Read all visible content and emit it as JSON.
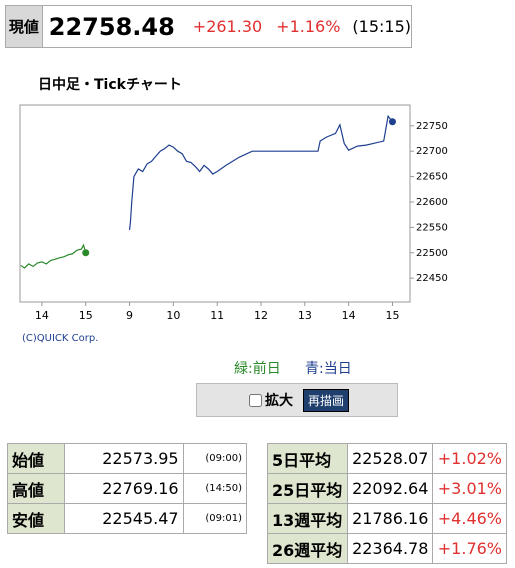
{
  "header": {
    "label": "現値",
    "price": "22758.48",
    "change": "+261.30",
    "change_pct": "+1.16%",
    "time": "(15:15)"
  },
  "chart_data": {
    "type": "line",
    "title": "日中足・Tickチャート",
    "copyright": "(C)QUICK Corp.",
    "xlim": [
      -0.5,
      8.4
    ],
    "xticks": [
      {
        "value": 0,
        "label": "14"
      },
      {
        "value": 1,
        "label": "15"
      },
      {
        "value": 2,
        "label": "9"
      },
      {
        "value": 3,
        "label": "10"
      },
      {
        "value": 4,
        "label": "11"
      },
      {
        "value": 5,
        "label": "12"
      },
      {
        "value": 6,
        "label": "13"
      },
      {
        "value": 7,
        "label": "14"
      },
      {
        "value": 8,
        "label": "15"
      }
    ],
    "ylim": [
      22403,
      22791
    ],
    "yticks": [
      22450,
      22500,
      22550,
      22600,
      22650,
      22700,
      22750
    ],
    "series": [
      {
        "name": "緑:前日",
        "color": "#2a8a2a",
        "x": [
          -0.48,
          -0.4,
          -0.3,
          -0.2,
          -0.1,
          0,
          0.1,
          0.2,
          0.3,
          0.4,
          0.5,
          0.6,
          0.7,
          0.8,
          0.9,
          0.95,
          1.0
        ],
        "values": [
          22475,
          22470,
          22478,
          22473,
          22480,
          22482,
          22478,
          22485,
          22487,
          22490,
          22492,
          22496,
          22498,
          22505,
          22507,
          22515,
          22500
        ]
      },
      {
        "name": "青:当日",
        "color": "#1f3f8f",
        "x": [
          2.0,
          2.02,
          2.05,
          2.1,
          2.2,
          2.3,
          2.4,
          2.5,
          2.6,
          2.7,
          2.8,
          2.9,
          3.0,
          3.1,
          3.2,
          3.3,
          3.4,
          3.5,
          3.6,
          3.7,
          3.8,
          3.9,
          4.0,
          4.2,
          4.5,
          4.8,
          5.2,
          5.6,
          6.0,
          6.3,
          6.35,
          6.5,
          6.7,
          6.8,
          6.9,
          7.0,
          7.2,
          7.4,
          7.6,
          7.8,
          7.9,
          8.0
        ],
        "values": [
          22545,
          22560,
          22600,
          22650,
          22665,
          22660,
          22675,
          22680,
          22690,
          22700,
          22705,
          22712,
          22708,
          22700,
          22695,
          22680,
          22678,
          22670,
          22660,
          22672,
          22665,
          22655,
          22660,
          22672,
          22688,
          22700,
          22700,
          22700,
          22700,
          22700,
          22720,
          22728,
          22735,
          22752,
          22715,
          22702,
          22710,
          22712,
          22716,
          22720,
          22769,
          22758
        ]
      }
    ]
  },
  "controls": {
    "checkbox": "拡大",
    "button": "再描画"
  },
  "table_left": {
    "rows": [
      [
        "始値",
        "22573.95",
        "(09:00)"
      ],
      [
        "高値",
        "22769.16",
        "(14:50)"
      ],
      [
        "安値",
        "22545.47",
        "(09:01)"
      ]
    ]
  },
  "table_right": {
    "rows": [
      [
        "5日平均",
        "22528.07",
        "+1.02%"
      ],
      [
        "25日平均",
        "22092.64",
        "+3.01%"
      ],
      [
        "13週平均",
        "21786.16",
        "+4.46%"
      ],
      [
        "26週平均",
        "22364.78",
        "+1.76%"
      ]
    ]
  }
}
